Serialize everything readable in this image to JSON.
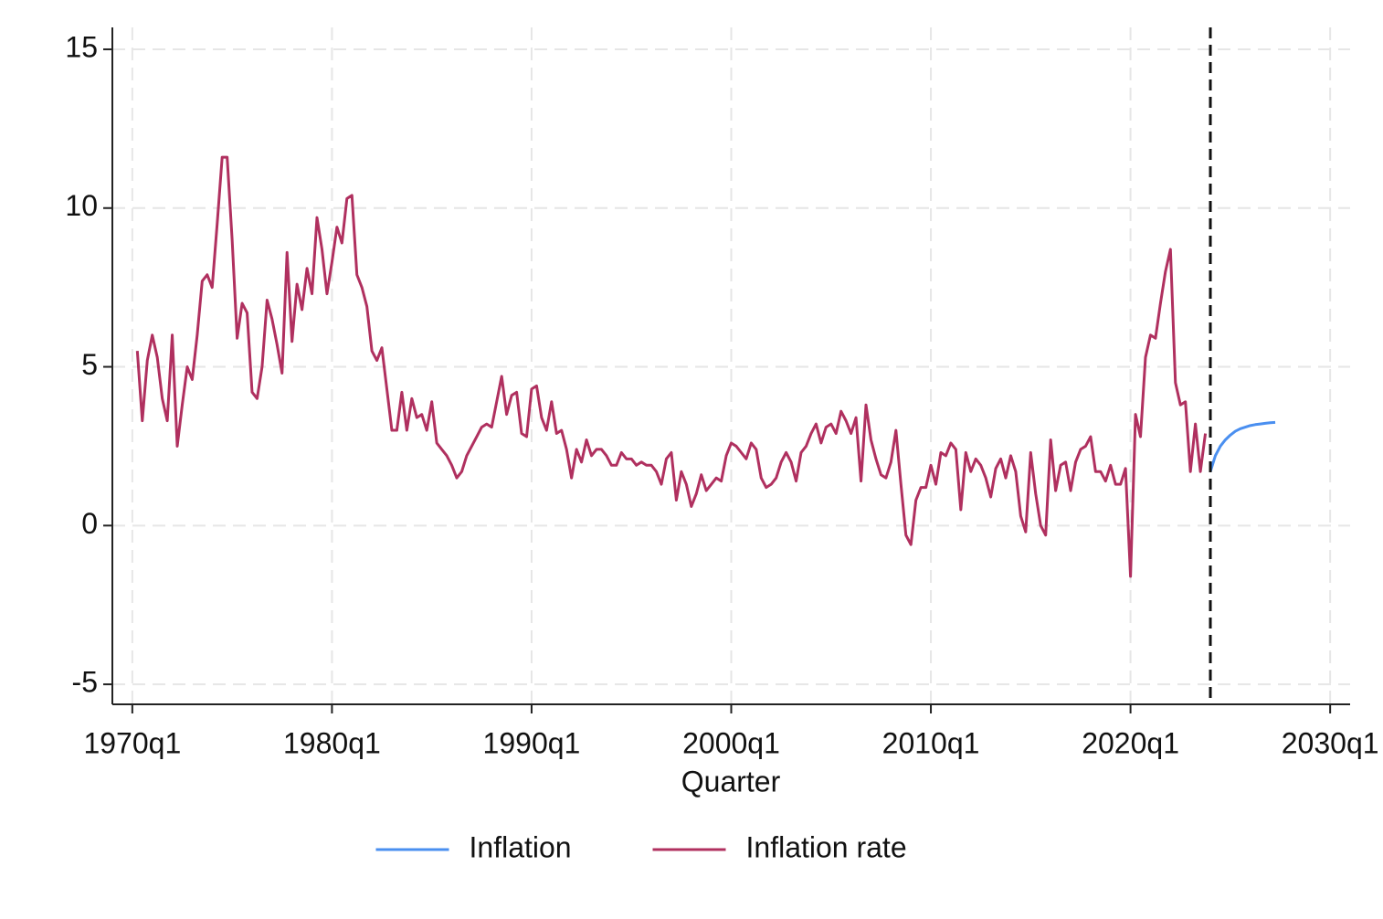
{
  "chart_data": {
    "type": "line",
    "x_label": "Quarter",
    "xlim": [
      1969,
      2031
    ],
    "ylim": [
      -5.63,
      15.69
    ],
    "xticks": [
      {
        "value": 1970,
        "label": "1970q1"
      },
      {
        "value": 1980,
        "label": "1980q1"
      },
      {
        "value": 1990,
        "label": "1990q1"
      },
      {
        "value": 2000,
        "label": "2000q1"
      },
      {
        "value": 2010,
        "label": "2010q1"
      },
      {
        "value": 2020,
        "label": "2020q1"
      },
      {
        "value": 2030,
        "label": "2030q1"
      }
    ],
    "yticks": [
      -5,
      0,
      5,
      10,
      15
    ],
    "grid": true,
    "xline": 2024,
    "legend": "bottom",
    "series": [
      {
        "name": "Inflation",
        "color": "#4a8ff0",
        "x": [
          2024,
          2024.25,
          2024.5,
          2024.75,
          2025,
          2025.25,
          2025.5,
          2025.75,
          2026,
          2026.25,
          2026.5,
          2026.75,
          2027,
          2027.25
        ],
        "values": [
          1.7,
          2.2,
          2.5,
          2.7,
          2.85,
          2.97,
          3.05,
          3.1,
          3.15,
          3.18,
          3.2,
          3.22,
          3.24,
          3.25
        ]
      },
      {
        "name": "Inflation rate",
        "color": "#b0305f",
        "x": [
          1970.25,
          1970.5,
          1970.75,
          1971,
          1971.25,
          1971.5,
          1971.75,
          1972,
          1972.25,
          1972.5,
          1972.75,
          1973,
          1973.25,
          1973.5,
          1973.75,
          1974,
          1974.25,
          1974.5,
          1974.75,
          1975,
          1975.25,
          1975.5,
          1975.75,
          1976,
          1976.25,
          1976.5,
          1976.75,
          1977,
          1977.25,
          1977.5,
          1977.75,
          1978,
          1978.25,
          1978.5,
          1978.75,
          1979,
          1979.25,
          1979.5,
          1979.75,
          1980,
          1980.25,
          1980.5,
          1980.75,
          1981,
          1981.25,
          1981.5,
          1981.75,
          1982,
          1982.25,
          1982.5,
          1982.75,
          1983,
          1983.25,
          1983.5,
          1983.75,
          1984,
          1984.25,
          1984.5,
          1984.75,
          1985,
          1985.25,
          1985.5,
          1985.75,
          1986,
          1986.25,
          1986.5,
          1986.75,
          1987,
          1987.25,
          1987.5,
          1987.75,
          1988,
          1988.25,
          1988.5,
          1988.75,
          1989,
          1989.25,
          1989.5,
          1989.75,
          1990,
          1990.25,
          1990.5,
          1990.75,
          1991,
          1991.25,
          1991.5,
          1991.75,
          1992,
          1992.25,
          1992.5,
          1992.75,
          1993,
          1993.25,
          1993.5,
          1993.75,
          1994,
          1994.25,
          1994.5,
          1994.75,
          1995,
          1995.25,
          1995.5,
          1995.75,
          1996,
          1996.25,
          1996.5,
          1996.75,
          1997,
          1997.25,
          1997.5,
          1997.75,
          1998,
          1998.25,
          1998.5,
          1998.75,
          1999,
          1999.25,
          1999.5,
          1999.75,
          2000,
          2000.25,
          2000.5,
          2000.75,
          2001,
          2001.25,
          2001.5,
          2001.75,
          2002,
          2002.25,
          2002.5,
          2002.75,
          2003,
          2003.25,
          2003.5,
          2003.75,
          2004,
          2004.25,
          2004.5,
          2004.75,
          2005,
          2005.25,
          2005.5,
          2005.75,
          2006,
          2006.25,
          2006.5,
          2006.75,
          2007,
          2007.25,
          2007.5,
          2007.75,
          2008,
          2008.25,
          2008.5,
          2008.75,
          2009,
          2009.25,
          2009.5,
          2009.75,
          2010,
          2010.25,
          2010.5,
          2010.75,
          2011,
          2011.25,
          2011.5,
          2011.75,
          2012,
          2012.25,
          2012.5,
          2012.75,
          2013,
          2013.25,
          2013.5,
          2013.75,
          2014,
          2014.25,
          2014.5,
          2014.75,
          2015,
          2015.25,
          2015.5,
          2015.75,
          2016,
          2016.25,
          2016.5,
          2016.75,
          2017,
          2017.25,
          2017.5,
          2017.75,
          2018,
          2018.25,
          2018.5,
          2018.75,
          2019,
          2019.25,
          2019.5,
          2019.75,
          2020,
          2020.25,
          2020.5,
          2020.75,
          2021,
          2021.25,
          2021.5,
          2021.75,
          2022,
          2022.25,
          2022.5,
          2022.75,
          2023,
          2023.25,
          2023.5,
          2023.75
        ],
        "values": [
          5.5,
          3.3,
          5.2,
          6.0,
          5.3,
          4.0,
          3.3,
          6.0,
          2.5,
          3.8,
          5.0,
          4.6,
          6.0,
          7.7,
          7.9,
          7.5,
          9.5,
          11.6,
          11.6,
          9.0,
          5.9,
          7.0,
          6.7,
          4.2,
          4.0,
          5.0,
          7.1,
          6.5,
          5.7,
          4.8,
          8.6,
          5.8,
          7.6,
          6.8,
          8.1,
          7.3,
          9.7,
          8.7,
          7.3,
          8.3,
          9.4,
          8.9,
          10.3,
          10.4,
          7.9,
          7.5,
          6.9,
          5.5,
          5.2,
          5.6,
          4.3,
          3.0,
          3.0,
          4.2,
          3.0,
          4.0,
          3.4,
          3.5,
          3.0,
          3.9,
          2.6,
          2.4,
          2.2,
          1.9,
          1.5,
          1.7,
          2.2,
          2.5,
          2.8,
          3.1,
          3.2,
          3.1,
          3.9,
          4.7,
          3.5,
          4.1,
          4.2,
          2.9,
          2.8,
          4.3,
          4.4,
          3.4,
          3.0,
          3.9,
          2.9,
          3.0,
          2.4,
          1.5,
          2.4,
          2.0,
          2.7,
          2.2,
          2.4,
          2.4,
          2.2,
          1.9,
          1.9,
          2.3,
          2.1,
          2.1,
          1.9,
          2.0,
          1.9,
          1.9,
          1.7,
          1.3,
          2.1,
          2.3,
          0.8,
          1.7,
          1.3,
          0.6,
          1.0,
          1.6,
          1.1,
          1.3,
          1.5,
          1.4,
          2.2,
          2.6,
          2.5,
          2.3,
          2.1,
          2.6,
          2.4,
          1.5,
          1.2,
          1.3,
          1.5,
          2.0,
          2.3,
          2.0,
          1.4,
          2.3,
          2.5,
          2.9,
          3.2,
          2.6,
          3.1,
          3.2,
          2.9,
          3.6,
          3.3,
          2.9,
          3.4,
          1.4,
          3.8,
          2.7,
          2.1,
          1.6,
          1.5,
          2.0,
          3.0,
          1.3,
          -0.3,
          -0.6,
          0.8,
          1.2,
          1.2,
          1.9,
          1.3,
          2.3,
          2.2,
          2.6,
          2.4,
          0.5,
          2.3,
          1.7,
          2.1,
          1.9,
          1.5,
          0.9,
          1.8,
          2.1,
          1.5,
          2.2,
          1.7,
          0.3,
          -0.2,
          2.3,
          1.0,
          0.0,
          -0.3,
          2.7,
          1.1,
          1.9,
          2.0,
          1.1,
          2.0,
          2.4,
          2.5,
          2.8,
          1.7,
          1.7,
          1.4,
          1.9,
          1.3,
          1.3,
          1.8,
          -1.6,
          3.5,
          2.8,
          5.3,
          6.0,
          5.9,
          7.0,
          8.0,
          8.7,
          4.5,
          3.8,
          3.9,
          1.7,
          3.2,
          1.7,
          2.9
        ]
      }
    ]
  }
}
